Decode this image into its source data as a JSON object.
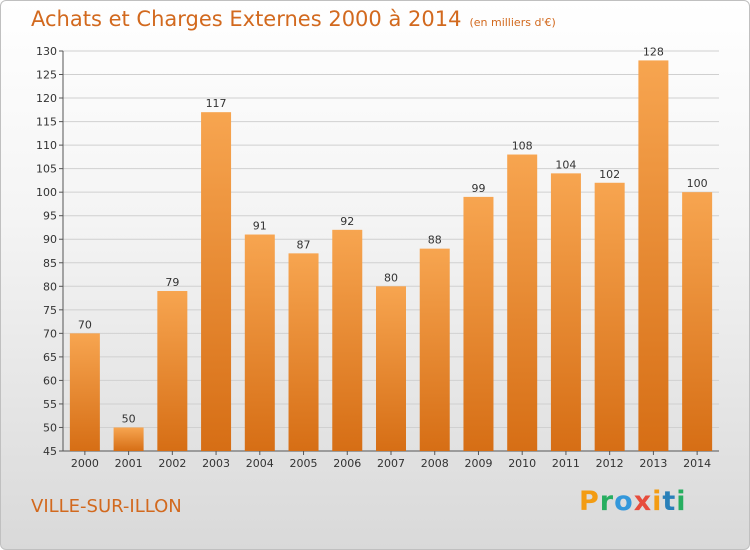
{
  "title": "Achats et Charges Externes 2000 à 2014",
  "subtitle": "(en milliers d'€)",
  "commune": "VILLE-SUR-ILLON",
  "brand": {
    "letters": [
      "P",
      "r",
      "o",
      "x",
      "i",
      "t",
      "i"
    ],
    "colors": [
      "#f39c12",
      "#27ae60",
      "#3498db",
      "#e74c3c",
      "#f39c12",
      "#2980b9",
      "#27ae60"
    ]
  },
  "colors": {
    "bar_light": "#f7a550",
    "bar_dark": "#d66e15",
    "text_accent": "#d2691e"
  },
  "chart_data": {
    "type": "bar",
    "title": "Achats et Charges Externes 2000 à 2014",
    "subtitle": "(en milliers d'€)",
    "categories": [
      "2000",
      "2001",
      "2002",
      "2003",
      "2004",
      "2005",
      "2006",
      "2007",
      "2008",
      "2009",
      "2010",
      "2011",
      "2012",
      "2013",
      "2014"
    ],
    "values": [
      70,
      50,
      79,
      117,
      91,
      87,
      92,
      80,
      88,
      99,
      108,
      104,
      102,
      128,
      100
    ],
    "ylim": [
      45,
      130
    ],
    "yticks": [
      45,
      50,
      55,
      60,
      65,
      70,
      75,
      80,
      85,
      90,
      95,
      100,
      105,
      110,
      115,
      120,
      125,
      130
    ],
    "grid": true,
    "xlabel": "",
    "ylabel": ""
  }
}
